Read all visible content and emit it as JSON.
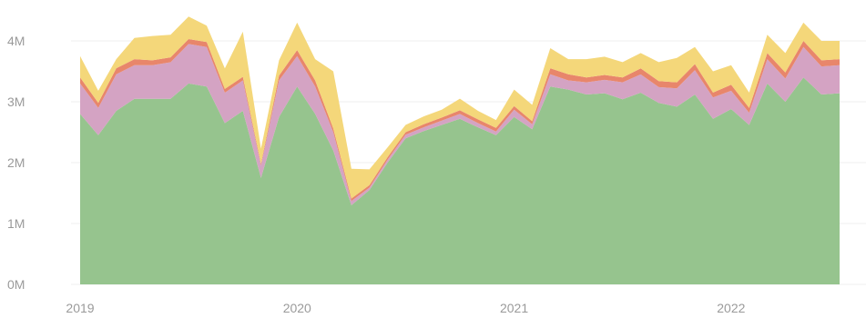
{
  "chart_data": {
    "type": "area",
    "stacked": true,
    "x": [
      "2019-01",
      "2019-02",
      "2019-03",
      "2019-04",
      "2019-05",
      "2019-06",
      "2019-07",
      "2019-08",
      "2019-09",
      "2019-10",
      "2019-11",
      "2019-12",
      "2020-01",
      "2020-02",
      "2020-03",
      "2020-04",
      "2020-05",
      "2020-06",
      "2020-07",
      "2020-08",
      "2020-09",
      "2020-10",
      "2020-11",
      "2020-12",
      "2021-01",
      "2021-02",
      "2021-03",
      "2021-04",
      "2021-05",
      "2021-06",
      "2021-07",
      "2021-08",
      "2021-09",
      "2021-10",
      "2021-11",
      "2021-12",
      "2022-01",
      "2022-02",
      "2022-03",
      "2022-04",
      "2022-05",
      "2022-06",
      "2022-07"
    ],
    "x_ticks": [
      "2019",
      "2020",
      "2021",
      "2022"
    ],
    "y_ticks": [
      "0M",
      "1M",
      "2M",
      "3M",
      "4M"
    ],
    "ylim": [
      0,
      4.2
    ],
    "y_unit": "M",
    "grid": true,
    "series": [
      {
        "color": "#96c48e",
        "values": [
          2.8,
          2.45,
          2.85,
          3.05,
          3.05,
          3.05,
          3.3,
          3.25,
          2.65,
          2.85,
          1.75,
          2.75,
          3.25,
          2.8,
          2.2,
          1.3,
          1.55,
          2.0,
          2.4,
          2.52,
          2.62,
          2.72,
          2.58,
          2.45,
          2.75,
          2.55,
          3.25,
          3.2,
          3.12,
          3.14,
          3.04,
          3.15,
          2.98,
          2.92,
          3.12,
          2.72,
          2.88,
          2.62,
          3.3,
          3.0,
          3.4,
          3.12,
          3.14
        ]
      },
      {
        "color": "#d4a3c3",
        "values": [
          0.5,
          0.45,
          0.6,
          0.55,
          0.55,
          0.6,
          0.65,
          0.65,
          0.5,
          0.5,
          0.2,
          0.6,
          0.5,
          0.45,
          0.3,
          0.07,
          0.04,
          0.05,
          0.06,
          0.06,
          0.07,
          0.08,
          0.07,
          0.06,
          0.12,
          0.08,
          0.2,
          0.15,
          0.2,
          0.22,
          0.28,
          0.3,
          0.26,
          0.3,
          0.4,
          0.35,
          0.3,
          0.2,
          0.4,
          0.38,
          0.5,
          0.46,
          0.46
        ]
      },
      {
        "color": "#e8866b",
        "values": [
          0.1,
          0.08,
          0.1,
          0.1,
          0.08,
          0.08,
          0.08,
          0.08,
          0.06,
          0.06,
          0.03,
          0.08,
          0.1,
          0.1,
          0.06,
          0.04,
          0.04,
          0.04,
          0.04,
          0.05,
          0.05,
          0.06,
          0.06,
          0.06,
          0.06,
          0.05,
          0.1,
          0.1,
          0.08,
          0.08,
          0.08,
          0.1,
          0.1,
          0.1,
          0.1,
          0.08,
          0.1,
          0.08,
          0.1,
          0.1,
          0.1,
          0.1,
          0.1
        ]
      },
      {
        "color": "#f4d77a",
        "values": [
          0.35,
          0.2,
          0.15,
          0.35,
          0.4,
          0.37,
          0.37,
          0.27,
          0.34,
          0.74,
          0.25,
          0.25,
          0.45,
          0.35,
          0.94,
          0.49,
          0.26,
          0.16,
          0.12,
          0.13,
          0.13,
          0.19,
          0.14,
          0.13,
          0.27,
          0.27,
          0.33,
          0.25,
          0.3,
          0.3,
          0.25,
          0.25,
          0.31,
          0.4,
          0.28,
          0.35,
          0.32,
          0.25,
          0.3,
          0.32,
          0.3,
          0.32,
          0.3
        ]
      }
    ]
  }
}
